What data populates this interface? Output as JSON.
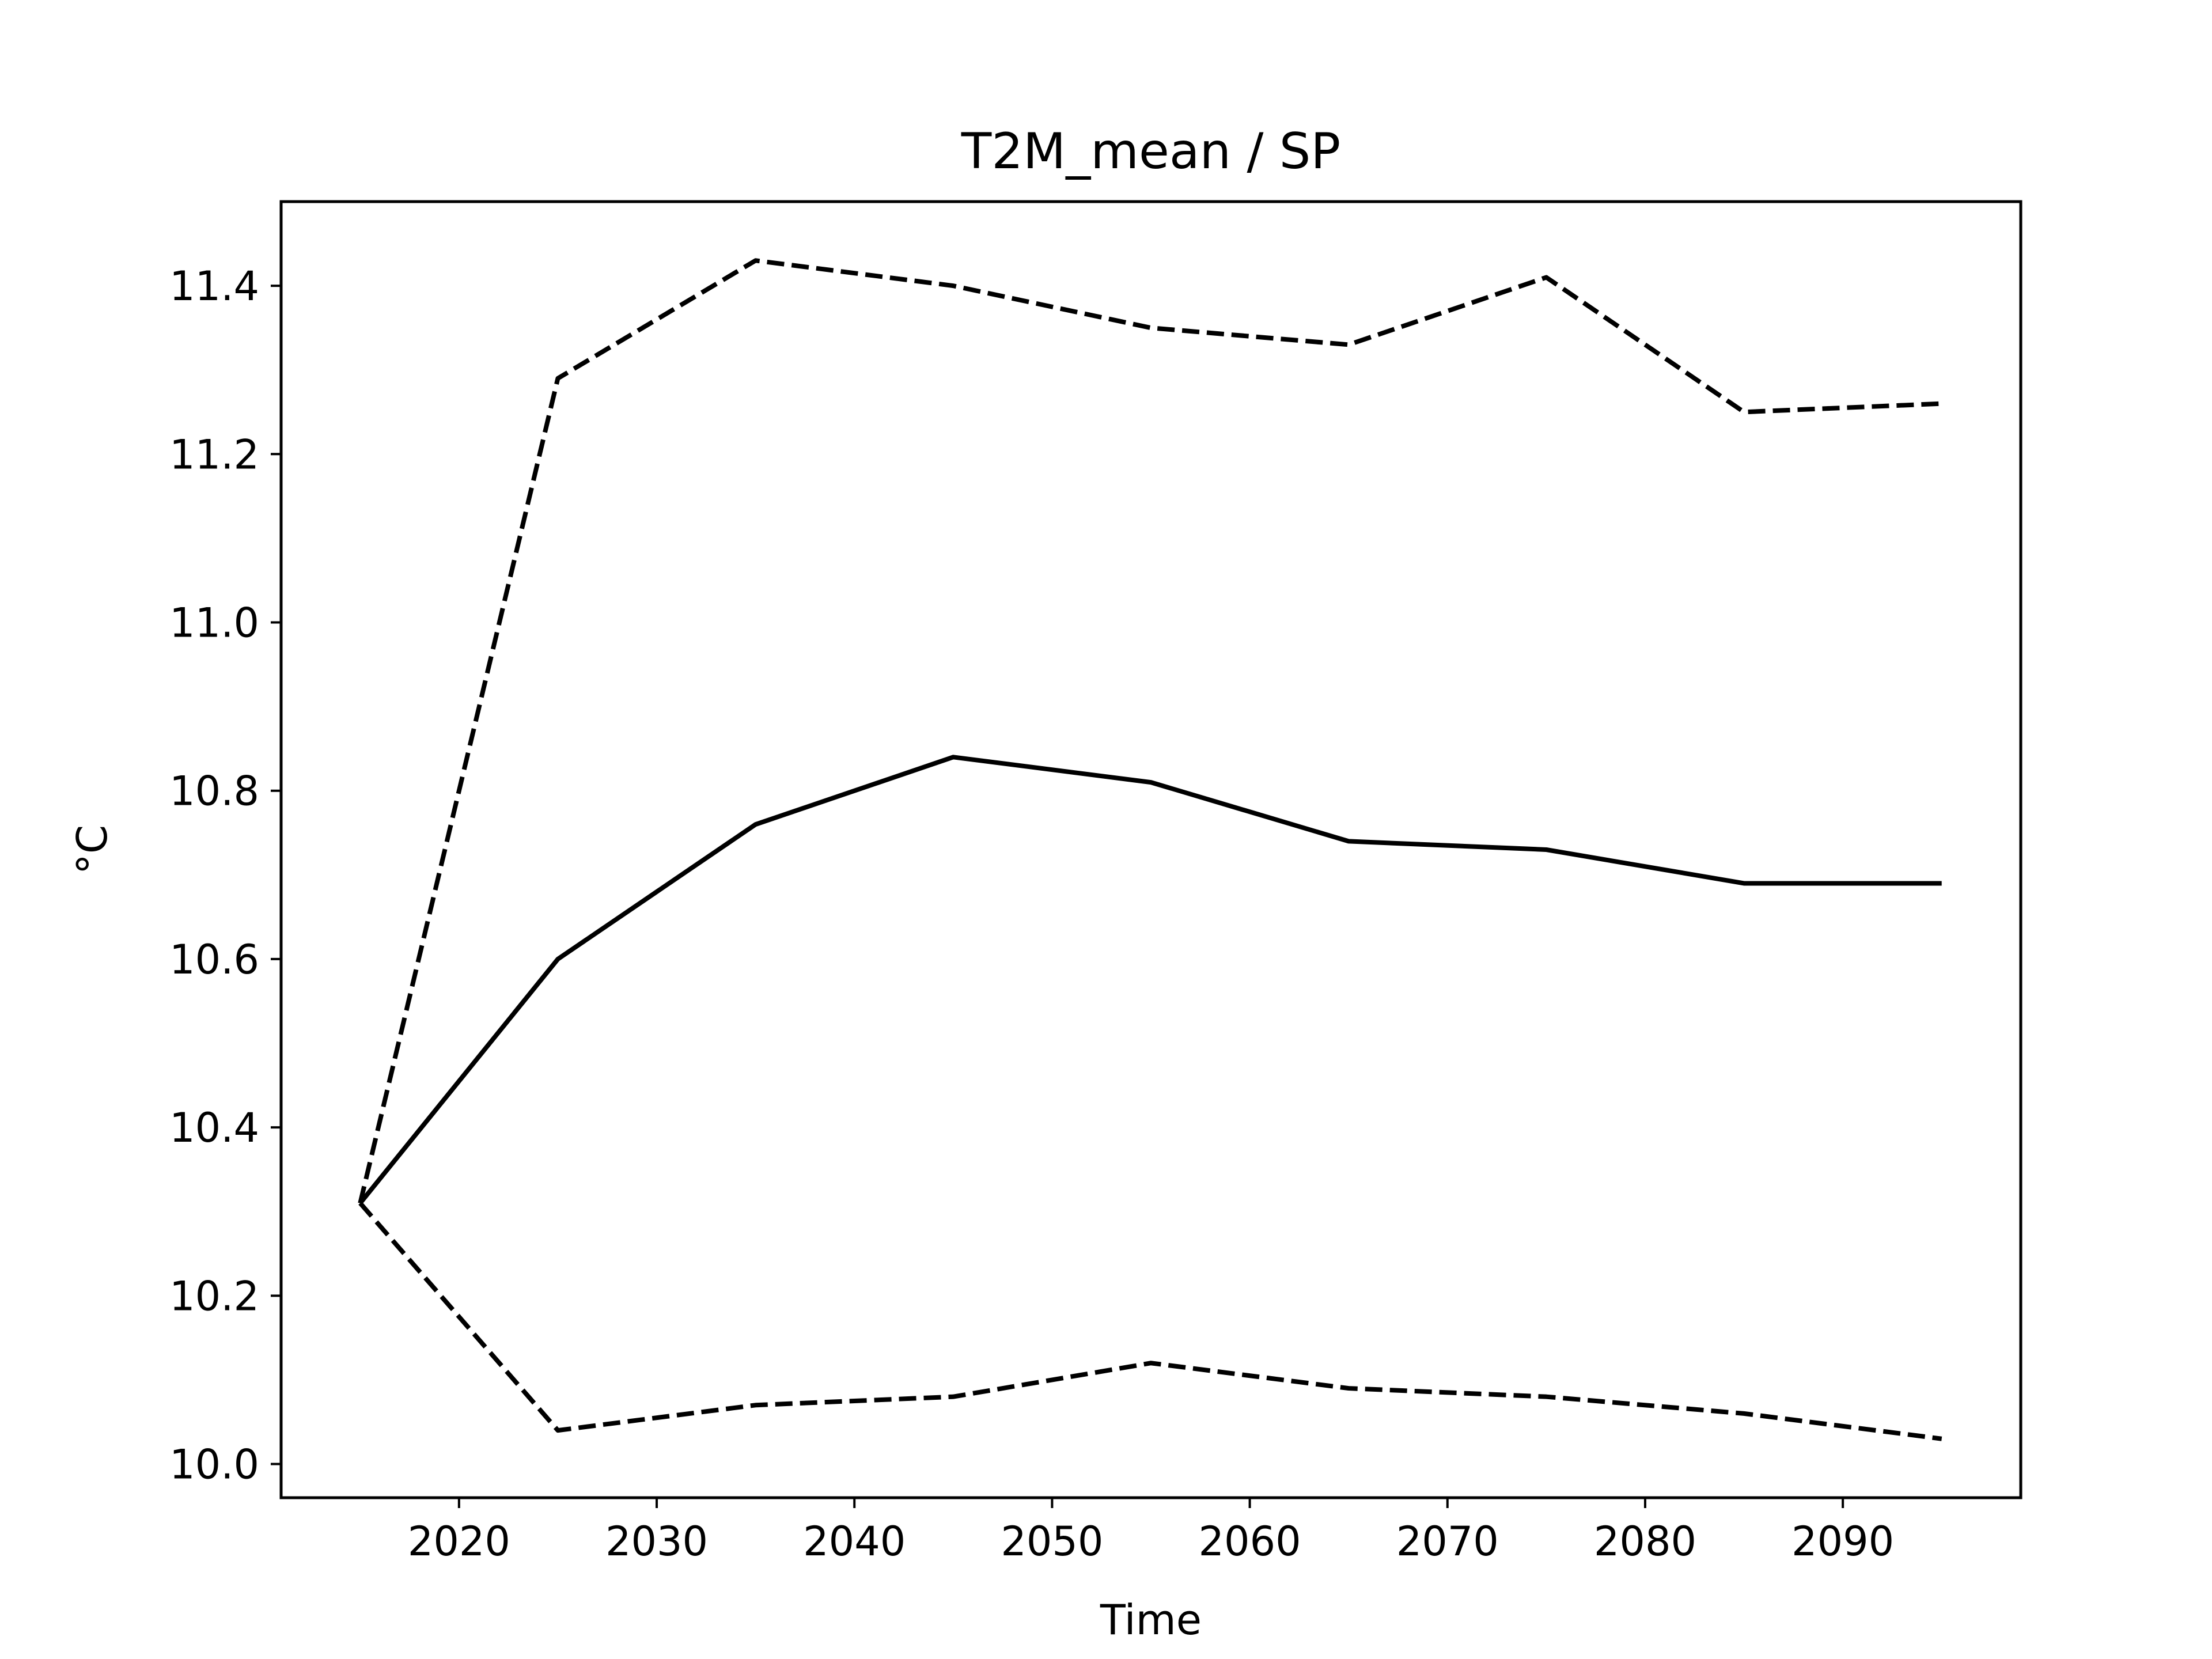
{
  "chart_data": {
    "type": "line",
    "title": "T2M_mean / SP",
    "xlabel": "Time",
    "ylabel": "°C",
    "xlim": [
      2011,
      2099
    ],
    "ylim": [
      9.96,
      11.5
    ],
    "xticks": [
      2020,
      2030,
      2040,
      2050,
      2060,
      2070,
      2080,
      2090
    ],
    "yticks": [
      10.0,
      10.2,
      10.4,
      10.6,
      10.8,
      11.0,
      11.2,
      11.4
    ],
    "ytick_labels": [
      "10.0",
      "10.2",
      "10.4",
      "10.6",
      "10.8",
      "11.0",
      "11.2",
      "11.4"
    ],
    "grid": false,
    "x": [
      2015,
      2025,
      2035,
      2045,
      2055,
      2065,
      2075,
      2085,
      2095
    ],
    "series": [
      {
        "style": "solid",
        "color": "#000000",
        "values": [
          10.31,
          10.6,
          10.76,
          10.84,
          10.81,
          10.74,
          10.73,
          10.69,
          10.69
        ]
      },
      {
        "style": "dashed",
        "color": "#000000",
        "values": [
          10.31,
          11.29,
          11.43,
          11.4,
          11.35,
          11.33,
          11.41,
          11.25,
          11.26
        ]
      },
      {
        "style": "dashed",
        "color": "#000000",
        "values": [
          10.31,
          10.04,
          10.07,
          10.08,
          10.12,
          10.09,
          10.08,
          10.06,
          10.03
        ]
      }
    ]
  }
}
